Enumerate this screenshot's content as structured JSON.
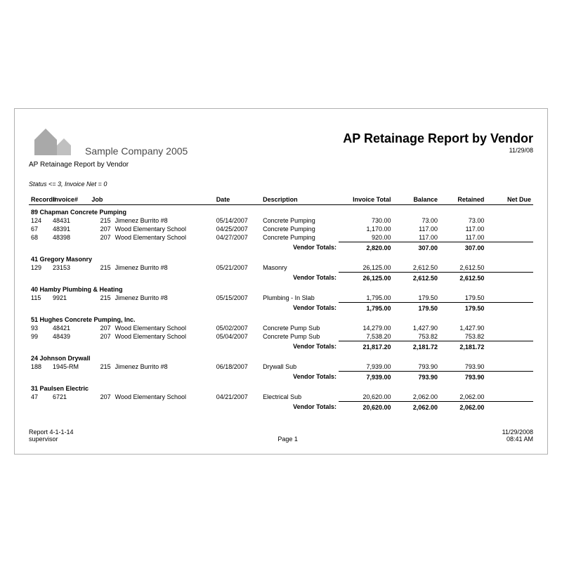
{
  "header": {
    "company": "Sample Company 2005",
    "subtitle": "AP Retainage Report by Vendor",
    "title": "AP Retainage Report by Vendor",
    "date": "11/29/08"
  },
  "filter": "Status <= 3, Invoice Net = 0",
  "columns": {
    "record": "Record#",
    "invoice": "Invoice#",
    "job": "Job",
    "date": "Date",
    "description": "Description",
    "invoice_total": "Invoice Total",
    "balance": "Balance",
    "retained": "Retained",
    "net_due": "Net Due"
  },
  "totals_label": "Vendor Totals:",
  "vendors": [
    {
      "num": "89",
      "name": "Chapman Concrete Pumping",
      "rows": [
        {
          "rec": "124",
          "inv": "48431",
          "jobn": "215",
          "jobnm": "Jimenez Burrito #8",
          "date": "05/14/2007",
          "desc": "Concrete Pumping",
          "tot": "730.00",
          "bal": "73.00",
          "ret": "73.00",
          "due": ""
        },
        {
          "rec": "67",
          "inv": "48391",
          "jobn": "207",
          "jobnm": "Wood Elementary School",
          "date": "04/25/2007",
          "desc": "Concrete Pumping",
          "tot": "1,170.00",
          "bal": "117.00",
          "ret": "117.00",
          "due": ""
        },
        {
          "rec": "68",
          "inv": "48398",
          "jobn": "207",
          "jobnm": "Wood Elementary School",
          "date": "04/27/2007",
          "desc": "Concrete Pumping",
          "tot": "920.00",
          "bal": "117.00",
          "ret": "117.00",
          "due": ""
        }
      ],
      "totals": {
        "tot": "2,820.00",
        "bal": "307.00",
        "ret": "307.00",
        "due": ""
      }
    },
    {
      "num": "41",
      "name": "Gregory Masonry",
      "rows": [
        {
          "rec": "129",
          "inv": "23153",
          "jobn": "215",
          "jobnm": "Jimenez Burrito #8",
          "date": "05/21/2007",
          "desc": "Masonry",
          "tot": "26,125.00",
          "bal": "2,612.50",
          "ret": "2,612.50",
          "due": ""
        }
      ],
      "totals": {
        "tot": "26,125.00",
        "bal": "2,612.50",
        "ret": "2,612.50",
        "due": ""
      }
    },
    {
      "num": "40",
      "name": "Hamby Plumbing & Heating",
      "rows": [
        {
          "rec": "115",
          "inv": "9921",
          "jobn": "215",
          "jobnm": "Jimenez Burrito #8",
          "date": "05/15/2007",
          "desc": "Plumbing - In Slab",
          "tot": "1,795.00",
          "bal": "179.50",
          "ret": "179.50",
          "due": ""
        }
      ],
      "totals": {
        "tot": "1,795.00",
        "bal": "179.50",
        "ret": "179.50",
        "due": ""
      }
    },
    {
      "num": "51",
      "name": "Hughes Concrete Pumping, Inc.",
      "rows": [
        {
          "rec": "93",
          "inv": "48421",
          "jobn": "207",
          "jobnm": "Wood Elementary School",
          "date": "05/02/2007",
          "desc": "Concrete Pump Sub",
          "tot": "14,279.00",
          "bal": "1,427.90",
          "ret": "1,427.90",
          "due": ""
        },
        {
          "rec": "99",
          "inv": "48439",
          "jobn": "207",
          "jobnm": "Wood Elementary School",
          "date": "05/04/2007",
          "desc": "Concrete Pump Sub",
          "tot": "7,538.20",
          "bal": "753.82",
          "ret": "753.82",
          "due": ""
        }
      ],
      "totals": {
        "tot": "21,817.20",
        "bal": "2,181.72",
        "ret": "2,181.72",
        "due": ""
      }
    },
    {
      "num": "24",
      "name": "Johnson Drywall",
      "rows": [
        {
          "rec": "188",
          "inv": "1945-RM",
          "jobn": "215",
          "jobnm": "Jimenez Burrito #8",
          "date": "06/18/2007",
          "desc": "Drywall Sub",
          "tot": "7,939.00",
          "bal": "793.90",
          "ret": "793.90",
          "due": ""
        }
      ],
      "totals": {
        "tot": "7,939.00",
        "bal": "793.90",
        "ret": "793.90",
        "due": ""
      }
    },
    {
      "num": "31",
      "name": "Paulsen Electric",
      "rows": [
        {
          "rec": "47",
          "inv": "6721",
          "jobn": "207",
          "jobnm": "Wood Elementary School",
          "date": "04/21/2007",
          "desc": "Electrical Sub",
          "tot": "20,620.00",
          "bal": "2,062.00",
          "ret": "2,062.00",
          "due": ""
        }
      ],
      "totals": {
        "tot": "20,620.00",
        "bal": "2,062.00",
        "ret": "2,062.00",
        "due": ""
      }
    }
  ],
  "footer": {
    "report_id": "Report  4-1-1-14",
    "user": "supervisor",
    "page": "Page  1",
    "date": "11/29/2008",
    "time": "08:41 AM"
  },
  "style": {
    "logo_main": "#a9a9a9",
    "logo_side": "#c0c0c0"
  }
}
